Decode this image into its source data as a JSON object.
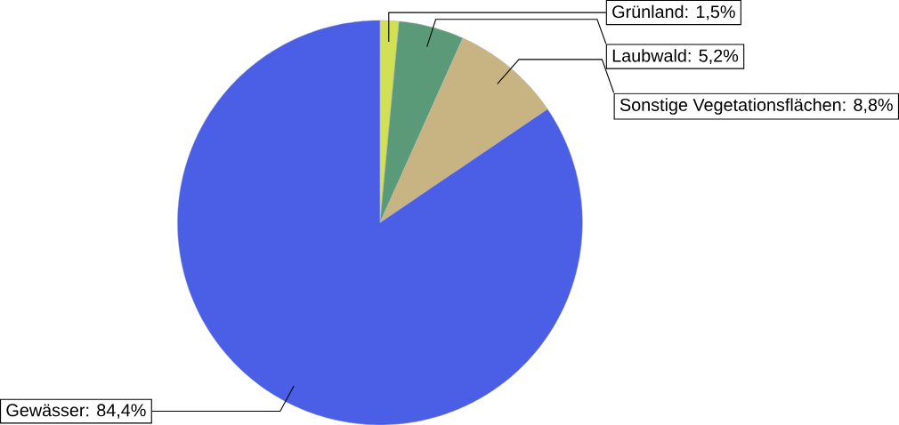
{
  "chart_data": {
    "type": "pie",
    "categories": [
      "Grünland: 1,5%",
      "Laubwald: 5,2%",
      "Sonstige Vegetationsflächen: 8,8%",
      "Gewässer: 84,4%"
    ],
    "values": [
      1.5,
      5.2,
      8.8,
      84.4
    ],
    "colors": [
      "#d2e055",
      "#5a9a78",
      "#c8b482",
      "#4a5fe6"
    ]
  }
}
